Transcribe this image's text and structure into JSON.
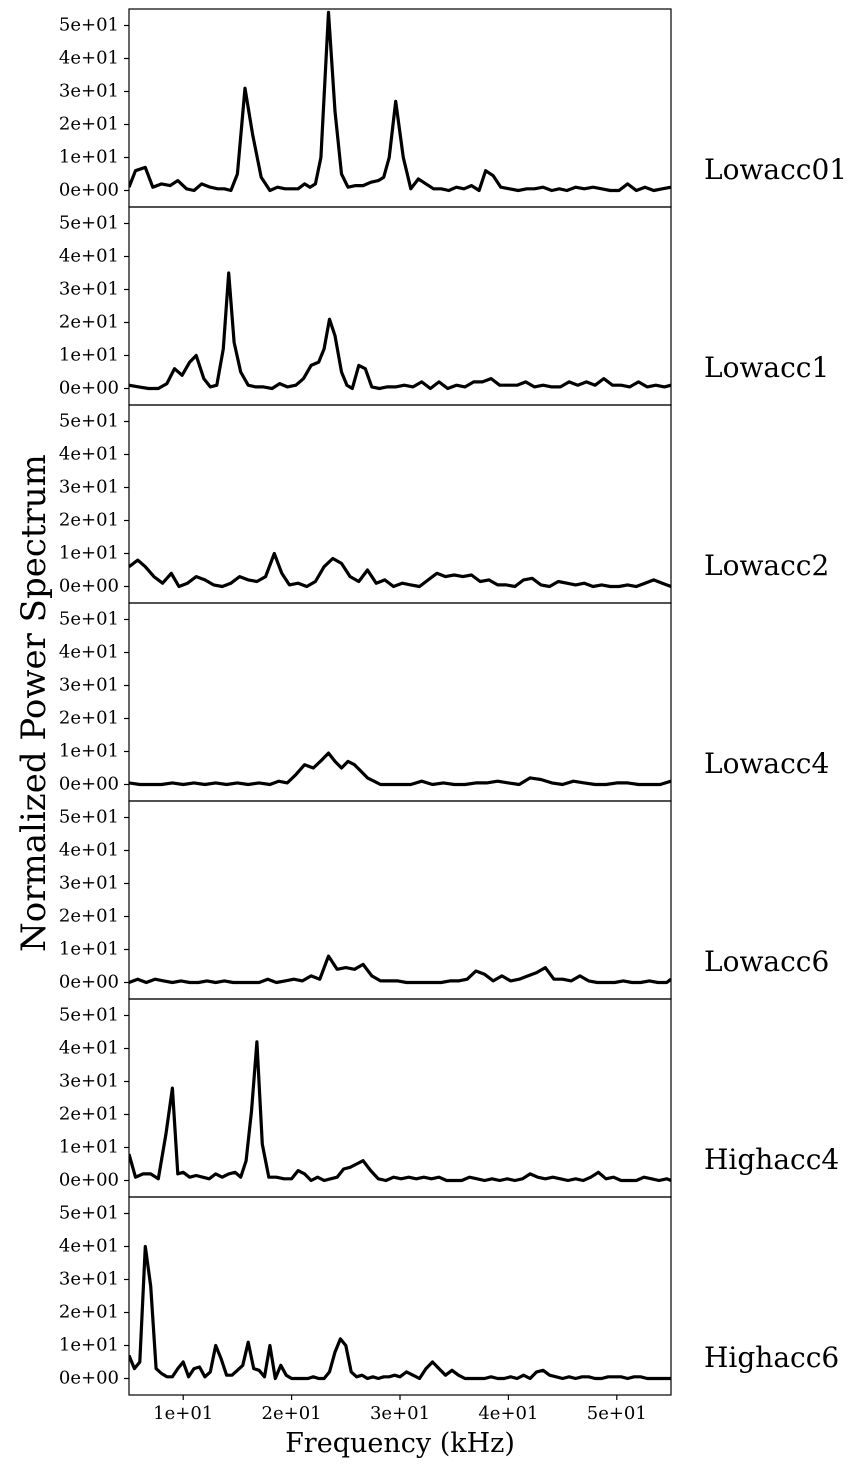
{
  "chart_data": {
    "type": "line",
    "xlabel": "Frequency (kHz)",
    "ylabel": "Normalized Power Spectrum",
    "xlim": [
      5,
      55
    ],
    "ylim": [
      -5,
      55
    ],
    "xticks": [
      {
        "value": 10,
        "label": "1e+01"
      },
      {
        "value": 20,
        "label": "2e+01"
      },
      {
        "value": 30,
        "label": "3e+01"
      },
      {
        "value": 40,
        "label": "4e+01"
      },
      {
        "value": 50,
        "label": "5e+01"
      }
    ],
    "yticks": [
      {
        "value": 0,
        "label": "0e+00"
      },
      {
        "value": 10,
        "label": "1e+01"
      },
      {
        "value": 20,
        "label": "2e+01"
      },
      {
        "value": 30,
        "label": "3e+01"
      },
      {
        "value": 40,
        "label": "4e+01"
      },
      {
        "value": 50,
        "label": "5e+01"
      }
    ],
    "line_color": "#000000",
    "panels": [
      {
        "label": "Lowacc01",
        "x": [
          5.0,
          5.6,
          6.5,
          7.2,
          8.0,
          8.8,
          9.5,
          10.3,
          11.0,
          11.7,
          12.5,
          13.2,
          13.8,
          14.4,
          15.0,
          15.7,
          16.4,
          17.2,
          18.0,
          18.7,
          19.4,
          20.0,
          20.6,
          21.2,
          21.7,
          22.2,
          22.7,
          23.4,
          24.0,
          24.6,
          25.2,
          25.9,
          26.6,
          27.3,
          28.0,
          28.5,
          29.0,
          29.6,
          30.3,
          31.0,
          31.7,
          32.4,
          33.1,
          33.8,
          34.5,
          35.2,
          35.9,
          36.6,
          37.3,
          37.9,
          38.6,
          39.3,
          40.1,
          40.9,
          41.7,
          42.4,
          43.2,
          44.0,
          44.7,
          45.4,
          46.2,
          47.0,
          47.8,
          48.6,
          49.4,
          50.2,
          51.0,
          51.8,
          52.6,
          53.4,
          54.2,
          55.0
        ],
        "y": [
          1,
          6,
          7,
          1,
          2,
          1.5,
          3,
          0.5,
          0,
          2,
          1,
          0.5,
          0.5,
          0,
          5,
          31,
          17,
          4,
          0,
          1,
          0.5,
          0.5,
          0.5,
          2,
          1,
          2,
          10,
          54,
          24,
          5,
          1,
          1.5,
          1.5,
          2.5,
          3,
          4,
          10,
          27,
          10,
          0.5,
          3.5,
          2,
          0.5,
          0.5,
          0,
          1,
          0.5,
          1.5,
          0,
          6,
          4.5,
          1,
          0.5,
          0,
          0.5,
          0.5,
          1,
          0,
          0.5,
          0,
          1,
          0.5,
          1,
          0.5,
          0,
          0,
          2,
          0,
          1,
          0,
          0.5,
          1
        ]
      },
      {
        "label": "Lowacc1",
        "x": [
          5.0,
          5.9,
          6.8,
          7.7,
          8.5,
          9.2,
          9.9,
          10.6,
          11.2,
          11.9,
          12.5,
          13.1,
          13.7,
          14.2,
          14.7,
          15.3,
          16.0,
          16.7,
          17.4,
          18.2,
          18.9,
          19.6,
          20.4,
          21.1,
          21.8,
          22.5,
          23.0,
          23.5,
          24.0,
          24.6,
          25.1,
          25.6,
          26.2,
          26.8,
          27.4,
          28.1,
          28.8,
          29.6,
          30.4,
          31.2,
          32.0,
          32.8,
          33.6,
          34.4,
          35.2,
          36.0,
          36.8,
          37.6,
          38.4,
          39.2,
          40.0,
          40.8,
          41.6,
          42.4,
          43.2,
          44.0,
          44.8,
          45.6,
          46.4,
          47.2,
          48.0,
          48.8,
          49.6,
          50.4,
          51.2,
          52.0,
          52.8,
          53.6,
          54.4,
          55.0
        ],
        "y": [
          1,
          0.5,
          0,
          0,
          1.5,
          6,
          4,
          8,
          10,
          3,
          0.5,
          1,
          12,
          35,
          14,
          5,
          1,
          0.5,
          0.5,
          0,
          1.5,
          0.5,
          1,
          3,
          7,
          8,
          12,
          21,
          16,
          5,
          1,
          0,
          7,
          6,
          0.5,
          0,
          0.5,
          0.5,
          1,
          0.5,
          2,
          0,
          2,
          0,
          1,
          0.5,
          2,
          2,
          3,
          1,
          1,
          1,
          2,
          0.5,
          1,
          0.5,
          0.5,
          2,
          1,
          2,
          1,
          3,
          1,
          1,
          0.5,
          2,
          0.5,
          1,
          0.5,
          1
        ]
      },
      {
        "label": "Lowacc2",
        "x": [
          5.0,
          5.8,
          6.5,
          7.3,
          8.1,
          8.9,
          9.6,
          10.4,
          11.2,
          12.0,
          12.8,
          13.6,
          14.4,
          15.2,
          16.0,
          16.8,
          17.6,
          18.4,
          19.1,
          19.8,
          20.6,
          21.4,
          22.2,
          23.0,
          23.8,
          24.6,
          25.4,
          26.2,
          27.0,
          27.8,
          28.6,
          29.4,
          30.2,
          31.0,
          31.8,
          32.6,
          33.4,
          34.2,
          35.0,
          35.8,
          36.6,
          37.4,
          38.2,
          39.0,
          39.8,
          40.6,
          41.4,
          42.2,
          43.0,
          43.8,
          44.6,
          45.4,
          46.2,
          47.0,
          47.8,
          48.6,
          49.4,
          50.2,
          51.0,
          51.8,
          52.6,
          53.4,
          54.2,
          55.0
        ],
        "y": [
          6,
          8,
          6,
          3,
          1,
          4,
          0,
          1,
          3,
          2,
          0.5,
          0,
          1,
          3,
          2,
          1.5,
          3,
          10,
          4,
          0.5,
          1,
          0,
          1.5,
          6,
          8.5,
          7,
          3,
          1.5,
          5,
          1,
          2,
          0,
          1,
          0.5,
          0,
          2,
          4,
          3,
          3.5,
          3,
          3.5,
          1.5,
          2,
          0.5,
          0.5,
          0,
          2,
          2.5,
          0.5,
          0,
          1.5,
          1,
          0.5,
          1,
          0,
          0.5,
          0,
          0,
          0.5,
          0,
          1,
          2,
          1,
          0
        ]
      },
      {
        "label": "Lowacc4",
        "x": [
          5.0,
          6.0,
          7.0,
          8.0,
          9.0,
          10.0,
          11.0,
          12.0,
          13.0,
          14.0,
          15.0,
          16.0,
          17.0,
          18.0,
          18.8,
          19.6,
          20.4,
          21.2,
          22.0,
          22.8,
          23.4,
          24.0,
          24.6,
          25.2,
          25.8,
          26.4,
          27.0,
          27.6,
          28.2,
          28.8,
          29.4,
          30.0,
          31.0,
          32.0,
          33.0,
          34.0,
          35.0,
          36.0,
          37.0,
          38.0,
          39.0,
          40.0,
          41.0,
          42.0,
          43.0,
          44.0,
          45.0,
          46.0,
          47.0,
          48.0,
          49.0,
          50.0,
          51.0,
          52.0,
          53.0,
          54.0,
          55.0
        ],
        "y": [
          0.5,
          0,
          0,
          0,
          0.5,
          0,
          0.5,
          0,
          0.5,
          0,
          0.5,
          0,
          0.5,
          0,
          1,
          0.5,
          3,
          6,
          5,
          7.5,
          9.5,
          7,
          5,
          7,
          6,
          4,
          2,
          1,
          0,
          0,
          0,
          0,
          0,
          1,
          0,
          0.5,
          0,
          0,
          0.5,
          0.5,
          1,
          0.5,
          0,
          2,
          1.5,
          0.5,
          0,
          1,
          0.5,
          0,
          0,
          0.5,
          0.5,
          0,
          0,
          0,
          1
        ]
      },
      {
        "label": "Lowacc6",
        "x": [
          5.0,
          5.8,
          6.6,
          7.4,
          8.2,
          9.0,
          9.8,
          10.6,
          11.4,
          12.2,
          13.0,
          13.8,
          14.6,
          15.4,
          16.2,
          17.0,
          17.8,
          18.6,
          19.4,
          20.2,
          21.0,
          21.8,
          22.6,
          23.4,
          24.2,
          25.0,
          25.8,
          26.6,
          27.4,
          28.2,
          29.0,
          29.8,
          30.6,
          31.4,
          32.2,
          33.0,
          33.8,
          34.6,
          35.4,
          36.2,
          37.0,
          37.8,
          38.6,
          39.4,
          40.2,
          41.0,
          41.8,
          42.6,
          43.4,
          44.2,
          45.0,
          45.8,
          46.6,
          47.4,
          48.2,
          49.0,
          49.8,
          50.6,
          51.4,
          52.2,
          53.0,
          53.8,
          54.6,
          55.0
        ],
        "y": [
          0,
          1,
          0,
          1,
          0.5,
          0,
          0.5,
          0,
          0,
          0.5,
          0,
          0.5,
          0,
          0,
          0,
          0,
          1,
          0,
          0.5,
          1,
          0.5,
          2,
          1,
          8,
          4,
          4.5,
          4,
          5.5,
          2,
          0.5,
          0.5,
          0.5,
          0,
          0,
          0,
          0,
          0,
          0.5,
          0.5,
          1,
          3.5,
          2.5,
          0.5,
          2,
          0.5,
          1,
          2,
          3,
          4.5,
          1,
          1,
          0.5,
          2,
          0.5,
          0,
          0,
          0,
          0.5,
          0,
          0,
          0.5,
          0,
          0,
          1
        ]
      },
      {
        "label": "Highacc4",
        "x": [
          5.0,
          5.6,
          6.3,
          7.0,
          7.7,
          8.4,
          9.0,
          9.5,
          10.0,
          10.6,
          11.2,
          11.8,
          12.4,
          13.0,
          13.6,
          14.2,
          14.8,
          15.3,
          15.8,
          16.3,
          16.8,
          17.3,
          17.9,
          18.6,
          19.3,
          20.0,
          20.6,
          21.2,
          21.8,
          22.4,
          23.0,
          23.6,
          24.2,
          24.8,
          25.4,
          26.0,
          26.6,
          27.3,
          28.0,
          28.7,
          29.4,
          30.1,
          30.8,
          31.5,
          32.2,
          32.9,
          33.6,
          34.3,
          35.0,
          35.7,
          36.4,
          37.1,
          37.8,
          38.5,
          39.2,
          39.9,
          40.6,
          41.3,
          42.0,
          42.7,
          43.4,
          44.1,
          44.8,
          45.5,
          46.2,
          46.9,
          47.6,
          48.3,
          49.0,
          49.7,
          50.4,
          51.1,
          51.8,
          52.5,
          53.2,
          53.9,
          54.6,
          55.0
        ],
        "y": [
          8,
          1,
          2,
          2,
          0.5,
          14,
          28,
          2,
          2.5,
          1,
          1.5,
          1,
          0.5,
          2,
          1,
          2,
          2.5,
          1,
          6,
          21,
          42,
          11,
          1,
          1,
          0.5,
          0.5,
          3,
          2,
          0,
          1,
          0,
          0.5,
          1,
          3.5,
          4,
          5,
          6,
          3,
          0.5,
          0,
          1,
          0.5,
          1,
          0.5,
          1,
          0.5,
          1,
          0,
          0,
          0,
          1,
          0.5,
          0,
          0.5,
          0,
          0.5,
          0,
          0.5,
          2,
          1,
          0.5,
          1,
          0.5,
          0,
          0.5,
          0,
          1,
          2.5,
          0.5,
          1,
          0,
          0,
          0,
          1,
          0.5,
          0,
          0.5,
          0
        ]
      },
      {
        "label": "Highacc6",
        "x": [
          5.0,
          5.5,
          6.0,
          6.5,
          7.0,
          7.5,
          8.0,
          8.5,
          9.0,
          9.5,
          10.0,
          10.5,
          11.0,
          11.5,
          12.0,
          12.5,
          13.0,
          13.5,
          14.0,
          14.5,
          15.0,
          15.5,
          16.0,
          16.5,
          17.0,
          17.5,
          18.0,
          18.5,
          19.0,
          19.5,
          20.0,
          20.5,
          21.0,
          21.5,
          22.0,
          22.5,
          23.0,
          23.5,
          24.0,
          24.5,
          25.0,
          25.5,
          26.0,
          26.5,
          27.0,
          27.5,
          28.0,
          28.5,
          29.0,
          29.5,
          30.0,
          30.6,
          31.2,
          31.8,
          32.4,
          33.0,
          33.6,
          34.2,
          34.8,
          35.4,
          36.0,
          36.6,
          37.2,
          37.8,
          38.4,
          39.0,
          39.6,
          40.2,
          40.8,
          41.4,
          42.0,
          42.6,
          43.2,
          43.8,
          44.4,
          45.0,
          45.6,
          46.2,
          46.8,
          47.4,
          48.0,
          48.6,
          49.2,
          49.8,
          50.4,
          51.0,
          51.6,
          52.2,
          52.8,
          53.4,
          54.0,
          55.0
        ],
        "y": [
          7,
          3,
          5,
          40,
          28,
          3,
          1.5,
          0.5,
          0.5,
          3,
          5,
          0.5,
          3,
          3.5,
          0.5,
          2,
          10,
          6,
          1,
          1,
          2.5,
          4,
          11,
          3,
          2.5,
          0.5,
          10,
          0,
          4,
          1,
          0,
          0,
          0,
          0,
          0.5,
          0,
          0,
          2,
          8,
          12,
          10,
          2,
          0.5,
          1,
          0,
          0.5,
          0,
          0.5,
          0.5,
          1,
          0.5,
          2,
          1,
          0,
          3,
          5,
          3,
          1,
          2.5,
          1,
          0,
          0,
          0,
          0,
          0.5,
          0,
          0,
          0.5,
          0,
          1,
          0,
          2,
          2.5,
          1,
          0.5,
          0,
          0.5,
          0,
          0.5,
          0.5,
          0,
          0,
          0.5,
          0.5,
          0.5,
          0,
          0.5,
          0.5,
          0,
          0,
          0,
          0
        ]
      }
    ]
  }
}
